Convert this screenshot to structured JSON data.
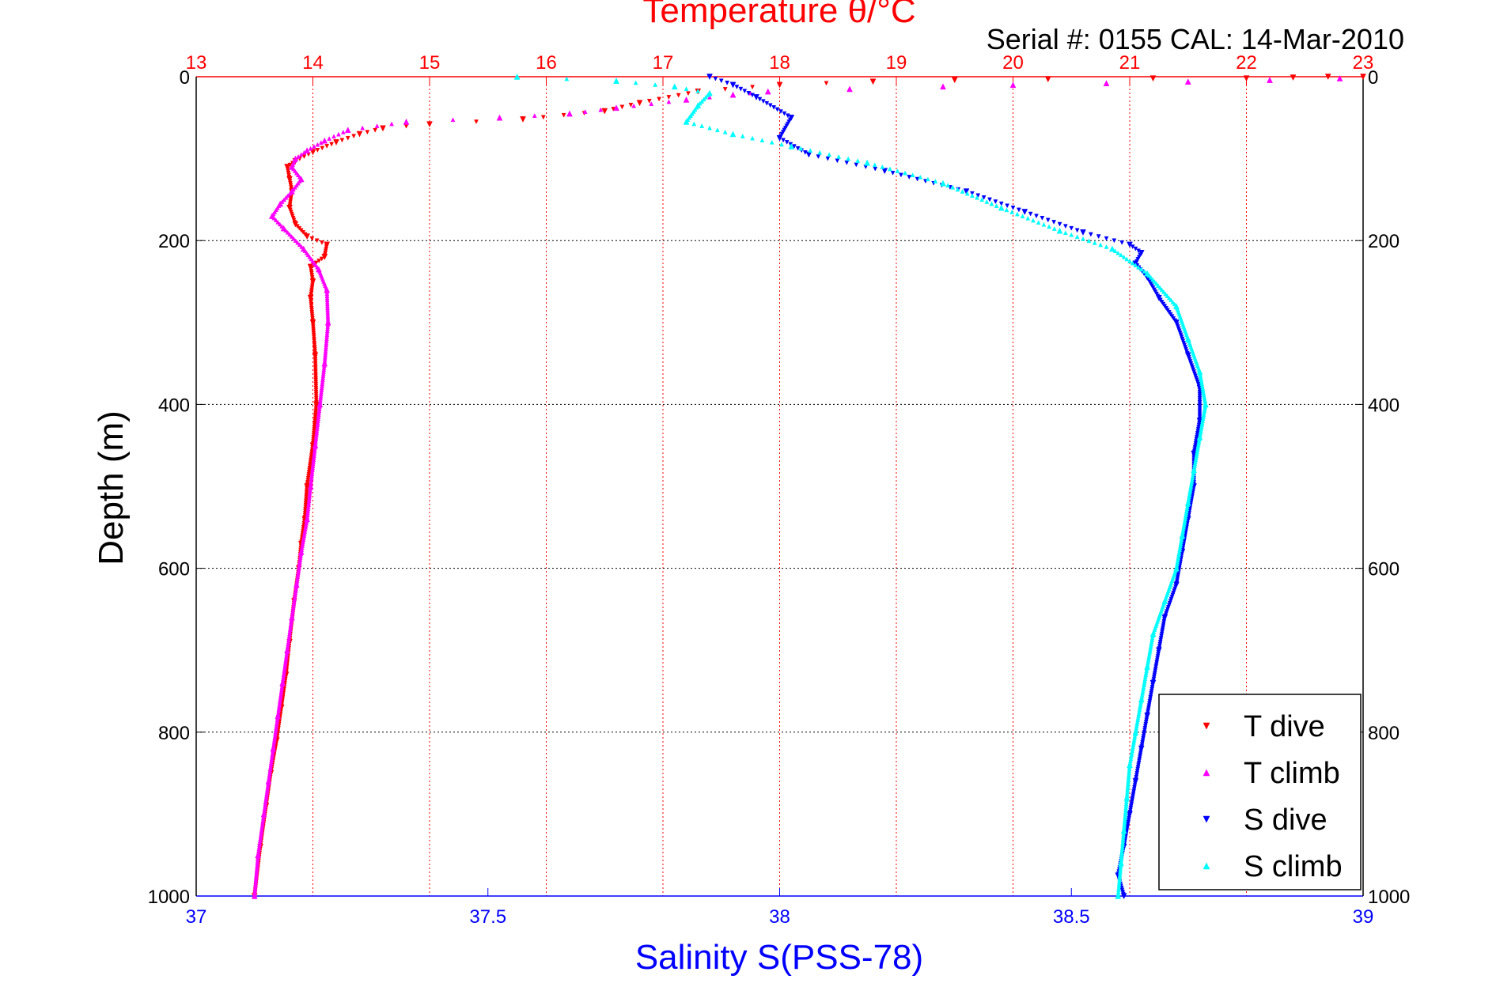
{
  "chart_data": {
    "type": "scatter",
    "title": "Temperature θ/°C",
    "subtitle": "Serial #: 0155  CAL: 14-Mar-2010",
    "xlabel": "Salinity S(PSS-78)",
    "ylabel": "Depth (m)",
    "top_axis": {
      "label": "Temperature θ/°C",
      "range": [
        13,
        23
      ],
      "ticks": [
        "13",
        "14",
        "15",
        "16",
        "17",
        "18",
        "19",
        "20",
        "21",
        "22",
        "23"
      ]
    },
    "bottom_axis": {
      "label": "Salinity S(PSS-78)",
      "range": [
        37,
        39
      ],
      "ticks": [
        "37",
        "37.5",
        "38",
        "38.5",
        "39"
      ]
    },
    "y_axis": {
      "range": [
        0,
        1000
      ],
      "reversed": true,
      "ticks": [
        "0",
        "200",
        "400",
        "600",
        "800",
        "1000"
      ]
    },
    "grid": true,
    "legend_position": "bottom-right",
    "colors": {
      "t_dive": "#ff0000",
      "t_climb": "#ff00ff",
      "s_dive": "#0000ff",
      "s_climb": "#00ffff",
      "temp_axis": "#ff0000",
      "sal_axis": "#0000ff"
    },
    "series": [
      {
        "name": "T dive",
        "axis": "temperature",
        "marker": "triangle-down",
        "color": "#ff0000",
        "points": [
          [
            23.0,
            0
          ],
          [
            22.7,
            0
          ],
          [
            22.4,
            1
          ],
          [
            22.0,
            2
          ],
          [
            21.2,
            2
          ],
          [
            20.3,
            3
          ],
          [
            19.5,
            4
          ],
          [
            18.8,
            6
          ],
          [
            18.0,
            10
          ],
          [
            17.3,
            18
          ],
          [
            16.8,
            32
          ],
          [
            16.5,
            42
          ],
          [
            15.8,
            52
          ],
          [
            15.0,
            58
          ],
          [
            14.6,
            63
          ],
          [
            14.4,
            70
          ],
          [
            14.2,
            80
          ],
          [
            14.0,
            92
          ],
          [
            13.85,
            103
          ],
          [
            13.78,
            110
          ],
          [
            13.8,
            125
          ],
          [
            13.82,
            140
          ],
          [
            13.8,
            160
          ],
          [
            13.85,
            180
          ],
          [
            13.95,
            195
          ],
          [
            14.12,
            205
          ],
          [
            14.1,
            220
          ],
          [
            13.98,
            232
          ],
          [
            14.0,
            250
          ],
          [
            13.98,
            270
          ],
          [
            14.0,
            300
          ],
          [
            14.02,
            340
          ],
          [
            14.03,
            400
          ],
          [
            14.0,
            450
          ],
          [
            13.95,
            500
          ],
          [
            13.93,
            540
          ],
          [
            13.9,
            570
          ],
          [
            13.88,
            600
          ],
          [
            13.84,
            640
          ],
          [
            13.8,
            690
          ],
          [
            13.77,
            730
          ],
          [
            13.73,
            770
          ],
          [
            13.69,
            810
          ],
          [
            13.64,
            850
          ],
          [
            13.6,
            890
          ],
          [
            13.55,
            940
          ],
          [
            13.5,
            1000
          ]
        ]
      },
      {
        "name": "T climb",
        "axis": "temperature",
        "marker": "triangle-up",
        "color": "#ff00ff",
        "points": [
          [
            22.8,
            2
          ],
          [
            22.2,
            4
          ],
          [
            21.5,
            6
          ],
          [
            20.8,
            8
          ],
          [
            20.0,
            10
          ],
          [
            19.4,
            12
          ],
          [
            18.6,
            15
          ],
          [
            17.9,
            18
          ],
          [
            17.6,
            22
          ],
          [
            17.2,
            28
          ],
          [
            16.6,
            38
          ],
          [
            16.2,
            45
          ],
          [
            15.6,
            50
          ],
          [
            14.8,
            55
          ],
          [
            14.3,
            65
          ],
          [
            14.1,
            78
          ],
          [
            13.95,
            90
          ],
          [
            13.85,
            100
          ],
          [
            13.82,
            110
          ],
          [
            13.9,
            125
          ],
          [
            13.82,
            140
          ],
          [
            13.72,
            155
          ],
          [
            13.65,
            170
          ],
          [
            13.75,
            185
          ],
          [
            13.92,
            210
          ],
          [
            14.05,
            235
          ],
          [
            14.12,
            260
          ],
          [
            14.13,
            300
          ],
          [
            14.1,
            350
          ],
          [
            14.06,
            400
          ],
          [
            14.02,
            450
          ],
          [
            13.98,
            500
          ],
          [
            13.95,
            540
          ],
          [
            13.9,
            580
          ],
          [
            13.86,
            620
          ],
          [
            13.82,
            660
          ],
          [
            13.78,
            700
          ],
          [
            13.74,
            740
          ],
          [
            13.7,
            780
          ],
          [
            13.66,
            820
          ],
          [
            13.62,
            860
          ],
          [
            13.58,
            900
          ],
          [
            13.53,
            950
          ],
          [
            13.5,
            1000
          ]
        ]
      },
      {
        "name": "S dive",
        "axis": "salinity",
        "marker": "triangle-down",
        "color": "#0000ff",
        "points": [
          [
            37.88,
            0
          ],
          [
            37.92,
            10
          ],
          [
            37.96,
            25
          ],
          [
            38.02,
            50
          ],
          [
            38.0,
            75
          ],
          [
            38.05,
            95
          ],
          [
            38.18,
            115
          ],
          [
            38.32,
            140
          ],
          [
            38.42,
            165
          ],
          [
            38.52,
            190
          ],
          [
            38.6,
            205
          ],
          [
            38.62,
            215
          ],
          [
            38.61,
            228
          ],
          [
            38.63,
            245
          ],
          [
            38.65,
            270
          ],
          [
            38.68,
            300
          ],
          [
            38.7,
            340
          ],
          [
            38.72,
            380
          ],
          [
            38.72,
            420
          ],
          [
            38.71,
            460
          ],
          [
            38.71,
            500
          ],
          [
            38.7,
            540
          ],
          [
            38.69,
            580
          ],
          [
            38.68,
            620
          ],
          [
            38.66,
            660
          ],
          [
            38.65,
            700
          ],
          [
            38.64,
            740
          ],
          [
            38.63,
            780
          ],
          [
            38.62,
            820
          ],
          [
            38.61,
            860
          ],
          [
            38.6,
            900
          ],
          [
            38.59,
            940
          ],
          [
            38.58,
            975
          ],
          [
            38.59,
            1000
          ]
        ]
      },
      {
        "name": "S climb",
        "axis": "salinity",
        "marker": "triangle-up",
        "color": "#00ffff",
        "points": [
          [
            37.55,
            0
          ],
          [
            37.72,
            5
          ],
          [
            37.82,
            12
          ],
          [
            37.88,
            20
          ],
          [
            37.86,
            35
          ],
          [
            37.84,
            55
          ],
          [
            37.92,
            70
          ],
          [
            38.02,
            85
          ],
          [
            38.15,
            105
          ],
          [
            38.28,
            130
          ],
          [
            38.38,
            160
          ],
          [
            38.48,
            188
          ],
          [
            38.57,
            210
          ],
          [
            38.63,
            240
          ],
          [
            38.68,
            280
          ],
          [
            38.7,
            320
          ],
          [
            38.72,
            360
          ],
          [
            38.73,
            400
          ],
          [
            38.72,
            440
          ],
          [
            38.71,
            480
          ],
          [
            38.7,
            520
          ],
          [
            38.69,
            560
          ],
          [
            38.68,
            600
          ],
          [
            38.66,
            640
          ],
          [
            38.64,
            680
          ],
          [
            38.63,
            720
          ],
          [
            38.62,
            760
          ],
          [
            38.61,
            800
          ],
          [
            38.6,
            840
          ],
          [
            38.595,
            880
          ],
          [
            38.59,
            920
          ],
          [
            38.585,
            960
          ],
          [
            38.58,
            1000
          ]
        ]
      }
    ]
  }
}
